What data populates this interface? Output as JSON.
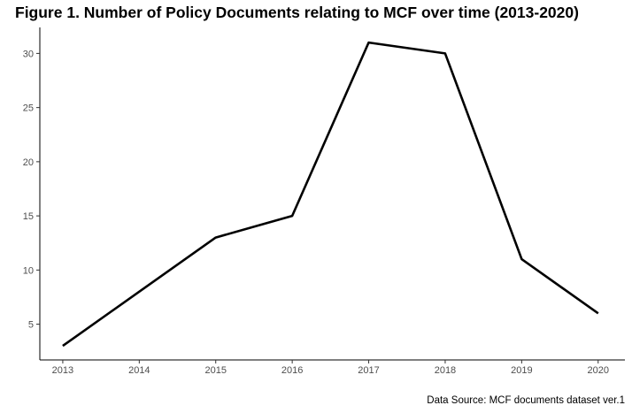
{
  "chart_data": {
    "type": "line",
    "title": "Figure 1. Number of Policy Documents relating to MCF over time (2013-2020)",
    "caption": "Data Source: MCF documents dataset ver.1",
    "xlabel": "",
    "ylabel": "",
    "x": [
      2013,
      2014,
      2015,
      2016,
      2017,
      2018,
      2019,
      2020
    ],
    "series": [
      {
        "values": [
          3,
          8,
          13,
          15,
          31,
          30,
          11,
          6
        ]
      }
    ],
    "x_ticks": [
      2013,
      2014,
      2015,
      2016,
      2017,
      2018,
      2019,
      2020
    ],
    "y_ticks": [
      5,
      10,
      15,
      20,
      25,
      30
    ],
    "xlim": [
      2012.7,
      2020.35
    ],
    "ylim": [
      1.7,
      32.4
    ],
    "grid": false,
    "legend": "none",
    "line_color": "#000000"
  }
}
